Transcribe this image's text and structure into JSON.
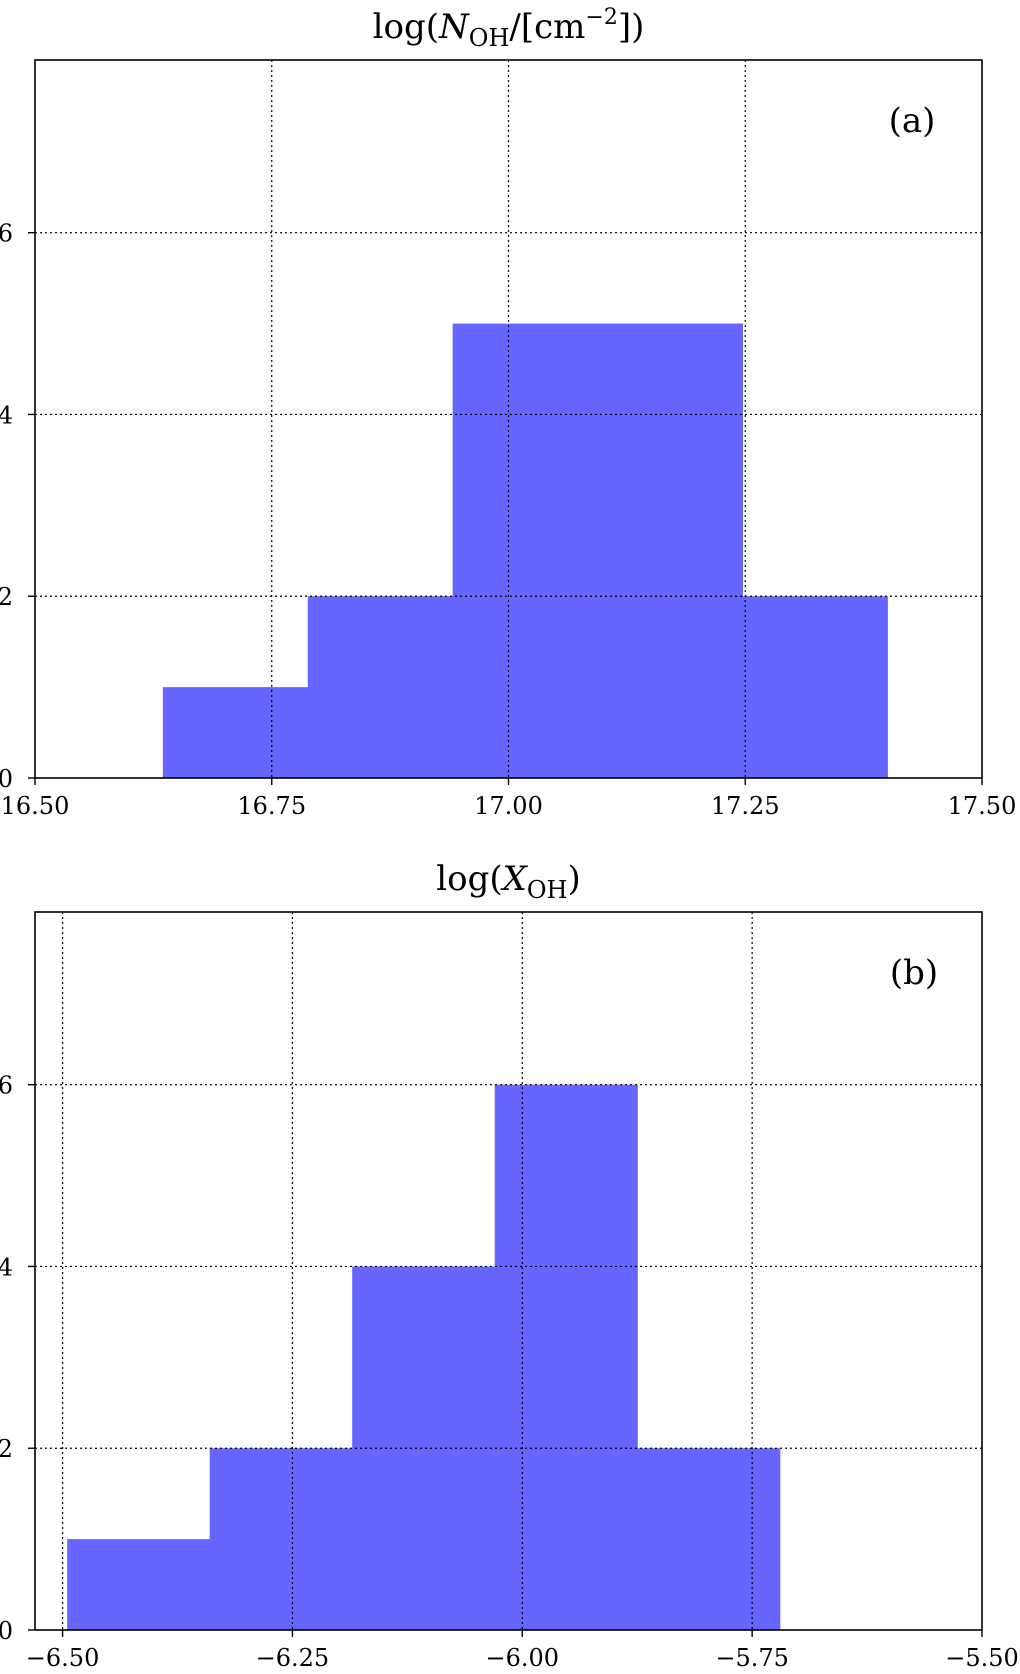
{
  "chart_data": [
    {
      "type": "bar",
      "subtype": "histogram",
      "title": "log(N_OH/[cm^-2])",
      "title_parts": {
        "pre": "log(",
        "var": "N",
        "sub": "OH",
        "mid": "/[cm",
        "sup": "−2",
        "post": "])"
      },
      "panel_label": "(a)",
      "xlabel": "",
      "ylabel": "",
      "xlim": [
        16.5,
        17.5
      ],
      "ylim": [
        0,
        7.9
      ],
      "xticks": [
        16.5,
        16.75,
        17.0,
        17.25,
        17.5
      ],
      "xtick_labels": [
        "16.50",
        "16.75",
        "17.00",
        "17.25",
        "17.50"
      ],
      "yticks": [
        0,
        2,
        4,
        6
      ],
      "ytick_labels": [
        "0",
        "2",
        "4",
        "6"
      ],
      "grid": true,
      "bar_color": "#6666ff",
      "bins": [
        16.635,
        16.788,
        16.941,
        17.094,
        17.247,
        17.4
      ],
      "counts": [
        1,
        2,
        5,
        5,
        2
      ]
    },
    {
      "type": "bar",
      "subtype": "histogram",
      "title": "log(X_OH)",
      "title_parts": {
        "pre": "log(",
        "var": "X",
        "sub": "OH",
        "post": ")"
      },
      "panel_label": "(b)",
      "xlabel": "",
      "ylabel": "",
      "xlim": [
        -6.53,
        -5.5
      ],
      "ylim": [
        0,
        7.9
      ],
      "xticks": [
        -6.5,
        -6.25,
        -6.0,
        -5.75,
        -5.5
      ],
      "xtick_labels": [
        "−6.50",
        "−6.25",
        "−6.00",
        "−5.75",
        "−5.50"
      ],
      "yticks": [
        0,
        2,
        4,
        6
      ],
      "ytick_labels": [
        "0",
        "2",
        "4",
        "6"
      ],
      "grid": true,
      "bar_color": "#6666ff",
      "bins": [
        -6.495,
        -6.34,
        -6.185,
        -6.03,
        -5.875,
        -5.72
      ],
      "counts": [
        1,
        2,
        4,
        6,
        2
      ]
    }
  ]
}
